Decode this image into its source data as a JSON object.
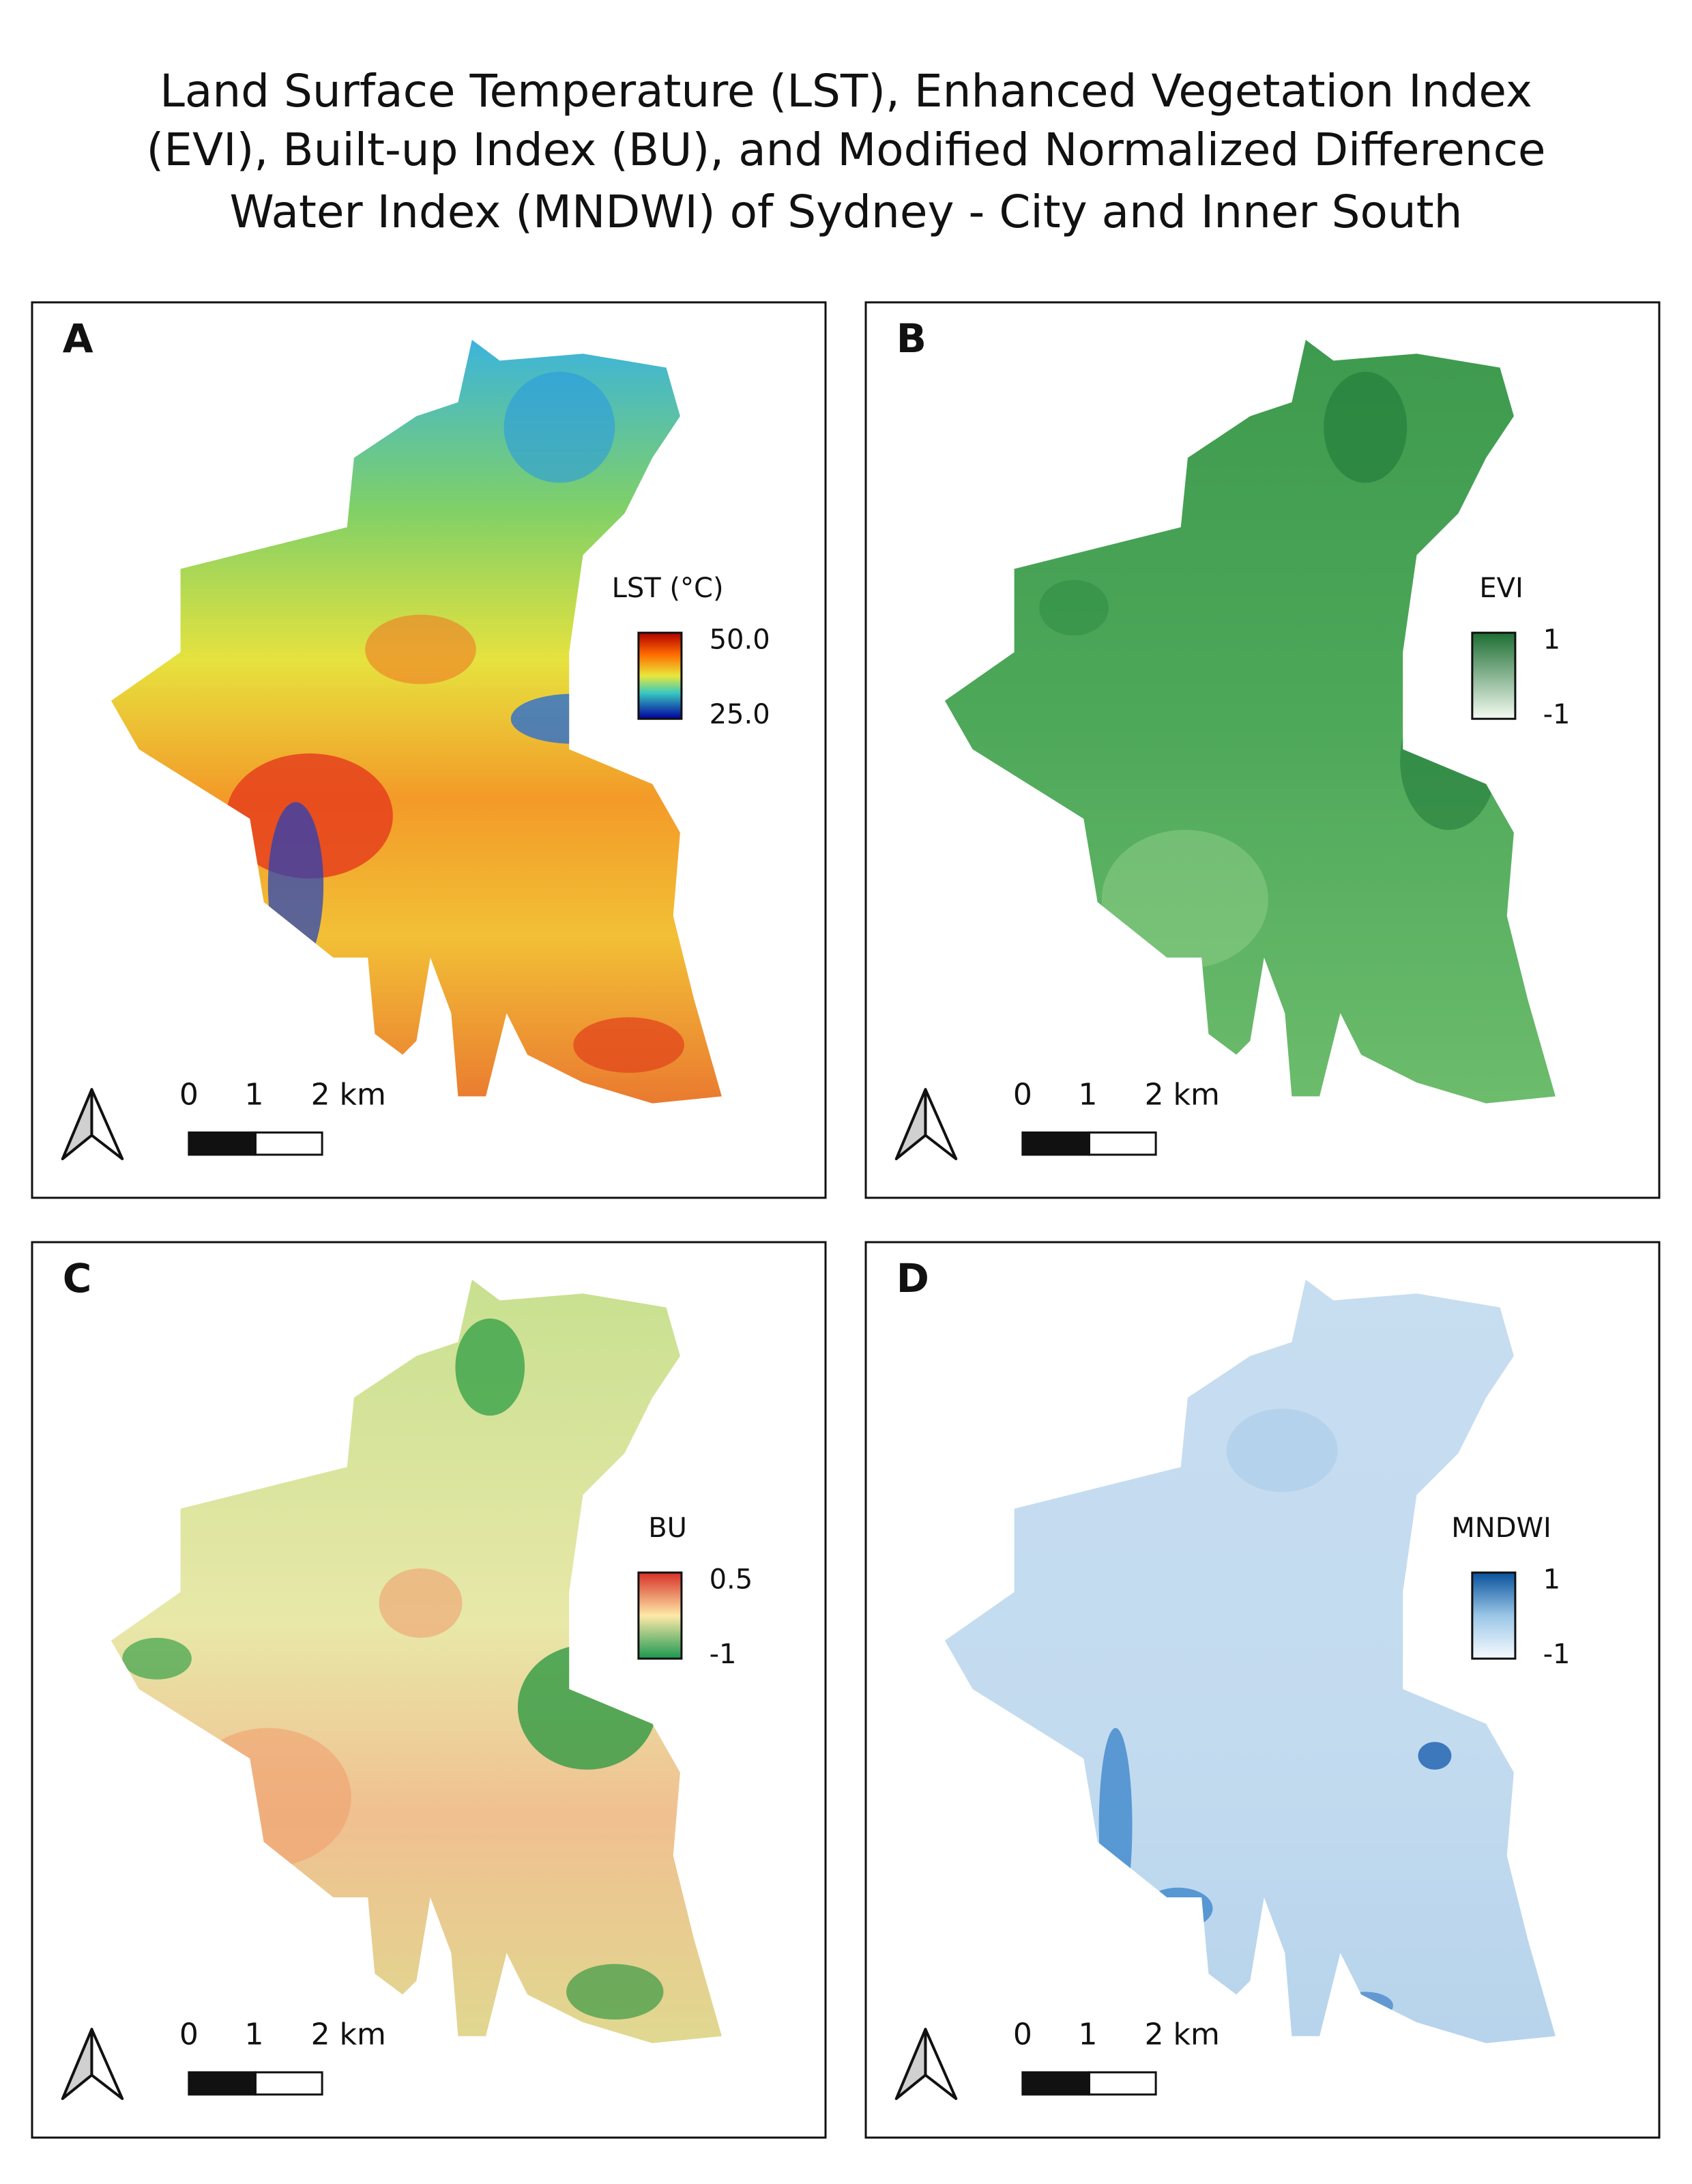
{
  "title_lines": [
    "Land Surface Temperature (LST), Enhanced Vegetation Index",
    "(EVI), Built-up Index (BU), and Modified Normalized Difference",
    "Water Index (MNDWI) of Sydney - City and Inner South"
  ],
  "panels": [
    {
      "label": "A",
      "legend_title": "LST (°C)",
      "legend_max": "50.0",
      "legend_min": "25.0",
      "scale_labels": [
        "0",
        "1",
        "2 km"
      ]
    },
    {
      "label": "B",
      "legend_title": "EVI",
      "legend_max": "1",
      "legend_min": "-1",
      "scale_labels": [
        "0",
        "1",
        "2 km"
      ]
    },
    {
      "label": "C",
      "legend_title": "BU",
      "legend_max": "0.5",
      "legend_min": "-1",
      "scale_labels": [
        "0",
        "1",
        "2 km"
      ]
    },
    {
      "label": "D",
      "legend_title": "MNDWI",
      "legend_max": "1",
      "legend_min": "-1",
      "scale_labels": [
        "0",
        "1",
        "2 km"
      ]
    }
  ]
}
